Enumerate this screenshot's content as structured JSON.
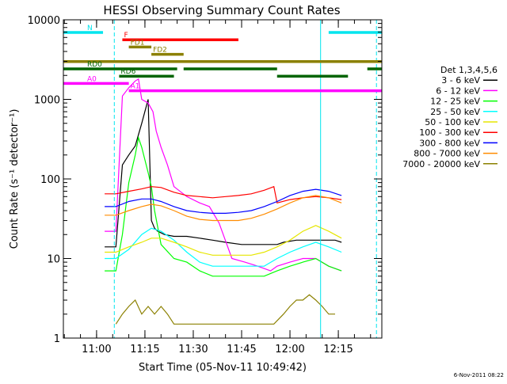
{
  "chart_data": {
    "type": "line",
    "title": "HESSI Observing Summary Count Rates",
    "xlabel": "Start Time (05-Nov-11 10:49:42)",
    "ylabel": "Count Rate (s⁻¹ detector⁻¹)",
    "timestamp": "6-Nov-2011 08:22",
    "y_scale": "log",
    "ylim": [
      1,
      10000
    ],
    "xlim": [
      "10:49:42",
      "12:28:30"
    ],
    "x_ticks": [
      "11:00",
      "11:15",
      "11:30",
      "11:45",
      "12:00",
      "12:15"
    ],
    "y_ticks": [
      "1",
      "10",
      "100",
      "1000",
      "10000"
    ],
    "legend": {
      "title": "Det 1,3,4,5,6",
      "placement": "right",
      "entries": [
        {
          "label": "3 - 6 keV",
          "color": "#000000"
        },
        {
          "label": "6 - 12 keV",
          "color": "#ff00ff"
        },
        {
          "label": "12 - 25 keV",
          "color": "#00ff00"
        },
        {
          "label": "25 - 50 keV",
          "color": "#00ffff"
        },
        {
          "label": "50 - 100 keV",
          "color": "#e6e600"
        },
        {
          "label": "100 - 300 keV",
          "color": "#ff0000"
        },
        {
          "label": "300 - 800 keV",
          "color": "#0000ff"
        },
        {
          "label": "800 - 7000 keV",
          "color": "#ff8c00"
        },
        {
          "label": "7000 - 20000 keV",
          "color": "#8b8000"
        }
      ]
    },
    "flag_bars": [
      {
        "label": "N",
        "color": "#00e5ee",
        "segments": [
          [
            "10:49:42",
            "11:02:00"
          ],
          [
            "12:12:00",
            "12:28:30"
          ]
        ]
      },
      {
        "label": "F",
        "color": "#ff0000",
        "segments": [
          [
            "11:08:00",
            "11:44:00"
          ]
        ]
      },
      {
        "label": "FD1",
        "color": "#8b8000",
        "segments": [
          [
            "11:10:00",
            "11:17:00"
          ]
        ]
      },
      {
        "label": "FD2",
        "color": "#8b8000",
        "segments": [
          [
            "11:17:00",
            "11:27:00"
          ]
        ]
      },
      {
        "label": "",
        "color": "#8b8000",
        "segments": [
          [
            "10:49:42",
            "12:28:30"
          ]
        ]
      },
      {
        "label": "RD0",
        "color": "#006400",
        "segments": [
          [
            "10:49:42",
            "11:25:00"
          ],
          [
            "11:27:00",
            "11:56:00"
          ],
          [
            "12:24:00",
            "12:28:30"
          ]
        ]
      },
      {
        "label": "RD6",
        "color": "#006400",
        "segments": [
          [
            "11:07:00",
            "11:24:00"
          ],
          [
            "11:56:00",
            "12:18:00"
          ]
        ]
      },
      {
        "label": "A0",
        "color": "#ff00ff",
        "segments": [
          [
            "10:49:42",
            "11:10:00"
          ]
        ]
      },
      {
        "label": "A1",
        "color": "#ff00ff",
        "segments": [
          [
            "11:10:00",
            "12:28:30"
          ]
        ]
      }
    ],
    "vlines": [
      {
        "color": "#00e5ee",
        "style": "solid",
        "times": [
          "10:49:42",
          "12:09:30"
        ]
      },
      {
        "color": "#00e5ee",
        "style": "dashed",
        "times": [
          "11:05:30",
          "12:26:50"
        ]
      }
    ],
    "series": [
      {
        "name": "3 - 6 keV",
        "color": "#000000",
        "x": [
          "11:02:30",
          "11:06:00",
          "11:08:00",
          "11:10:00",
          "11:12:00",
          "11:14:00",
          "11:16:00",
          "11:17:00",
          "11:18:00",
          "11:19:00",
          "11:20:00",
          "11:21:00",
          "11:24:00",
          "11:28:00",
          "11:32:00",
          "11:36:00",
          "11:40:00",
          "11:45:00",
          "11:50:00",
          "11:56:00",
          "11:58:00",
          "12:02:00",
          "12:06:00",
          "12:10:00",
          "12:14:00",
          "12:16:00"
        ],
        "y": [
          14,
          14,
          150,
          200,
          260,
          500,
          1000,
          30,
          24,
          22,
          21,
          20,
          19,
          19,
          18,
          17,
          16,
          15,
          15,
          15,
          16,
          17,
          17,
          17,
          17,
          16
        ]
      },
      {
        "name": "6 - 12 keV",
        "color": "#ff00ff",
        "x": [
          "11:02:30",
          "11:06:00",
          "11:08:00",
          "11:10:00",
          "11:12:00",
          "11:13:00",
          "11:14:00",
          "11:16:00",
          "11:17:30",
          "11:18:30",
          "11:20:00",
          "11:22:00",
          "11:24:00",
          "11:28:00",
          "11:32:00",
          "11:35:00",
          "11:38:00",
          "11:42:00",
          "11:46:00",
          "11:50:00",
          "11:54:00",
          "11:56:00",
          "12:00:00",
          "12:04:00",
          "12:08:00",
          "12:12:00",
          "12:16:00"
        ],
        "y": [
          22,
          22,
          1100,
          1400,
          1700,
          1800,
          1000,
          900,
          700,
          400,
          250,
          150,
          80,
          60,
          50,
          45,
          28,
          10,
          9,
          8,
          7,
          8,
          9,
          10,
          10,
          8,
          7
        ]
      },
      {
        "name": "12 - 25 keV",
        "color": "#00ff00",
        "x": [
          "11:02:30",
          "11:06:00",
          "11:08:00",
          "11:10:00",
          "11:12:00",
          "11:13:00",
          "11:14:00",
          "11:16:00",
          "11:17:00",
          "11:18:00",
          "11:20:00",
          "11:24:00",
          "11:28:00",
          "11:32:00",
          "11:36:00",
          "11:40:00",
          "11:44:00",
          "11:48:00",
          "11:52:00",
          "11:56:00",
          "12:00:00",
          "12:04:00",
          "12:08:00",
          "12:12:00",
          "12:16:00"
        ],
        "y": [
          7,
          7,
          20,
          90,
          200,
          330,
          250,
          120,
          80,
          40,
          15,
          10,
          9,
          7,
          6,
          6,
          6,
          6,
          6,
          7,
          8,
          9,
          10,
          8,
          7
        ]
      },
      {
        "name": "25 - 50 keV",
        "color": "#00ffff",
        "x": [
          "11:02:30",
          "11:06:00",
          "11:10:00",
          "11:14:00",
          "11:17:00",
          "11:20:00",
          "11:24:00",
          "11:28:00",
          "11:32:00",
          "11:36:00",
          "11:40:00",
          "11:44:00",
          "11:48:00",
          "11:52:00",
          "11:56:00",
          "12:00:00",
          "12:04:00",
          "12:08:00",
          "12:12:00",
          "12:16:00"
        ],
        "y": [
          10,
          10,
          13,
          20,
          24,
          22,
          17,
          12,
          9,
          8,
          8,
          8,
          8,
          8,
          10,
          12,
          14,
          16,
          14,
          12
        ]
      },
      {
        "name": "50 - 100 keV",
        "color": "#e6e600",
        "x": [
          "11:02:30",
          "11:06:00",
          "11:10:00",
          "11:14:00",
          "11:17:00",
          "11:20:00",
          "11:24:00",
          "11:28:00",
          "11:32:00",
          "11:36:00",
          "11:40:00",
          "11:44:00",
          "11:48:00",
          "11:52:00",
          "11:56:00",
          "12:00:00",
          "12:04:00",
          "12:08:00",
          "12:12:00",
          "12:16:00"
        ],
        "y": [
          12,
          12,
          14,
          16,
          18,
          18,
          16,
          14,
          12,
          11,
          11,
          11,
          11,
          12,
          14,
          17,
          22,
          26,
          22,
          18
        ]
      },
      {
        "name": "100 - 300 keV",
        "color": "#ff0000",
        "x": [
          "11:02:30",
          "11:06:00",
          "11:10:00",
          "11:14:00",
          "11:17:00",
          "11:20:00",
          "11:24:00",
          "11:28:00",
          "11:32:00",
          "11:36:00",
          "11:40:00",
          "11:44:00",
          "11:48:00",
          "11:52:00",
          "11:55:00",
          "11:56:00",
          "12:00:00",
          "12:04:00",
          "12:08:00",
          "12:12:00",
          "12:16:00"
        ],
        "y": [
          65,
          65,
          70,
          75,
          80,
          78,
          68,
          62,
          60,
          58,
          60,
          62,
          65,
          72,
          80,
          50,
          55,
          58,
          60,
          58,
          55
        ]
      },
      {
        "name": "300 - 800 keV",
        "color": "#0000ff",
        "x": [
          "11:02:30",
          "11:06:00",
          "11:10:00",
          "11:14:00",
          "11:17:00",
          "11:20:00",
          "11:24:00",
          "11:28:00",
          "11:32:00",
          "11:36:00",
          "11:40:00",
          "11:44:00",
          "11:48:00",
          "11:52:00",
          "11:56:00",
          "12:00:00",
          "12:04:00",
          "12:08:00",
          "12:12:00",
          "12:16:00"
        ],
        "y": [
          45,
          45,
          52,
          56,
          56,
          52,
          45,
          40,
          38,
          37,
          37,
          38,
          40,
          45,
          52,
          62,
          70,
          74,
          70,
          62
        ]
      },
      {
        "name": "800 - 7000 keV",
        "color": "#ff8c00",
        "x": [
          "11:02:30",
          "11:06:00",
          "11:10:00",
          "11:14:00",
          "11:17:00",
          "11:20:00",
          "11:24:00",
          "11:28:00",
          "11:32:00",
          "11:36:00",
          "11:40:00",
          "11:44:00",
          "11:48:00",
          "11:52:00",
          "11:56:00",
          "12:00:00",
          "12:04:00",
          "12:08:00",
          "12:12:00",
          "12:16:00"
        ],
        "y": [
          35,
          35,
          40,
          45,
          48,
          46,
          40,
          34,
          31,
          30,
          30,
          30,
          32,
          36,
          42,
          50,
          58,
          62,
          58,
          50
        ]
      },
      {
        "name": "7000 - 20000 keV",
        "color": "#8b8000",
        "x": [
          "11:06:00",
          "11:08:00",
          "11:10:00",
          "11:12:00",
          "11:14:00",
          "11:16:00",
          "11:18:00",
          "11:20:00",
          "11:22:00",
          "11:24:00",
          "11:55:00",
          "11:58:00",
          "12:00:00",
          "12:02:00",
          "12:04:00",
          "12:06:00",
          "12:08:00",
          "12:10:00",
          "12:12:00",
          "12:14:00"
        ],
        "y": [
          1.5,
          2,
          2.5,
          3,
          2,
          2.5,
          2,
          2.5,
          2,
          1.5,
          1.5,
          2,
          2.5,
          3,
          3,
          3.5,
          3,
          2.5,
          2,
          2
        ]
      }
    ]
  }
}
